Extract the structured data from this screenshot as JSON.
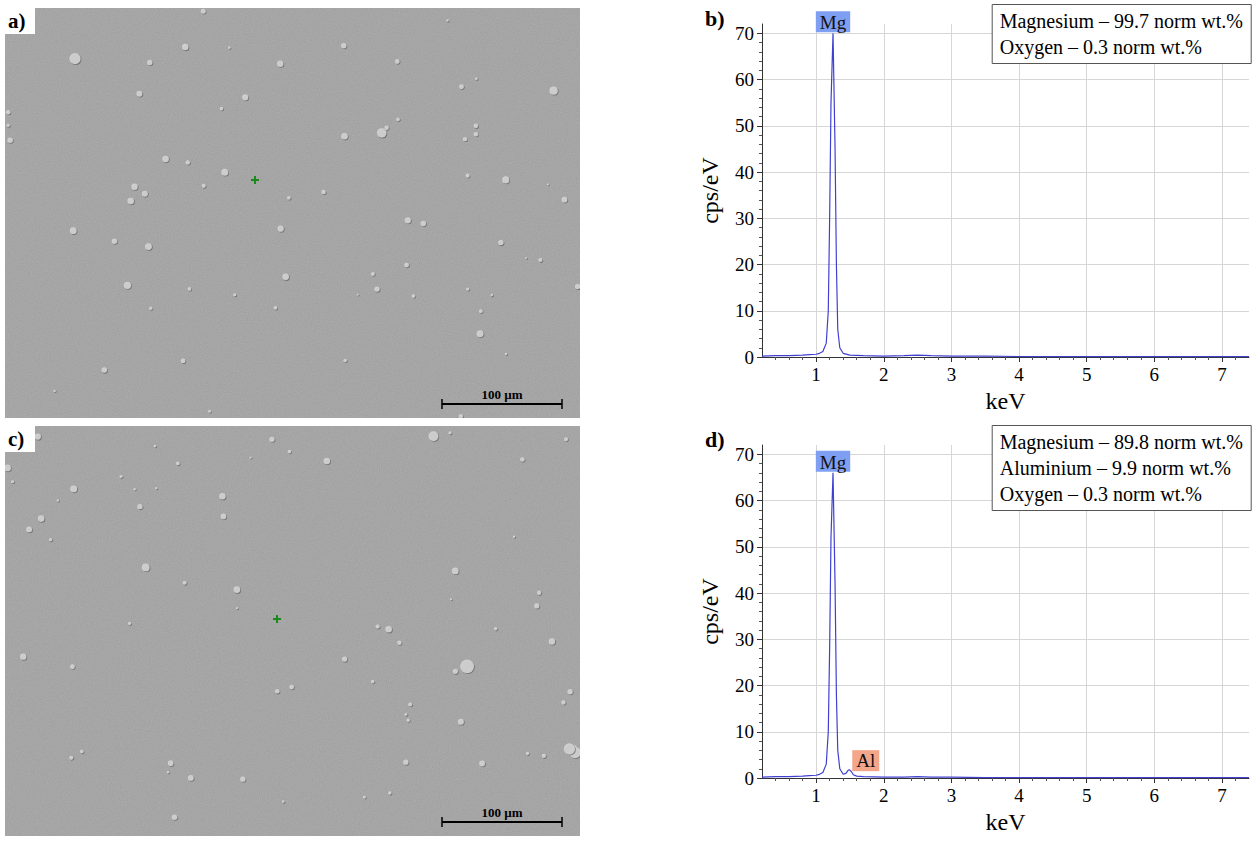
{
  "images": [
    {
      "panel": "a)",
      "scale_bar": "100 µm"
    },
    {
      "panel": "c)",
      "scale_bar": "100 µm"
    }
  ],
  "chart_data": [
    {
      "panel": "b)",
      "type": "line",
      "x_label": "keV",
      "y_label": "cps/eV",
      "xlim": [
        0.2,
        7.4
      ],
      "xticks": [
        1,
        2,
        3,
        4,
        5,
        6,
        7
      ],
      "ylim": [
        0,
        72
      ],
      "yticks": [
        0,
        10,
        20,
        30,
        40,
        50,
        60,
        70
      ],
      "grid": true,
      "color": "#4040d0",
      "x": [
        0.2,
        0.4,
        0.6,
        0.8,
        0.9,
        1.0,
        1.05,
        1.1,
        1.15,
        1.18,
        1.2,
        1.22,
        1.25,
        1.28,
        1.3,
        1.32,
        1.35,
        1.4,
        1.5,
        1.7,
        2.0,
        2.3,
        2.5,
        2.7,
        3.0,
        3.5,
        4.0,
        5.0,
        6.0,
        7.0,
        7.4
      ],
      "values": [
        0.2,
        0.3,
        0.3,
        0.4,
        0.5,
        0.6,
        0.8,
        1.2,
        3,
        10,
        30,
        55,
        70,
        45,
        20,
        6,
        2,
        0.8,
        0.4,
        0.3,
        0.2,
        0.3,
        0.4,
        0.3,
        0.2,
        0.2,
        0.1,
        0.1,
        0.1,
        0.1,
        0.1
      ],
      "peak_labels": [
        {
          "text": "Mg",
          "x": 1.25,
          "y": 70,
          "color": "#7f9ff2"
        }
      ],
      "composition": [
        "Magnesium – 99.7 norm wt.%",
        "Oxygen – 0.3 norm wt.%"
      ]
    },
    {
      "panel": "d)",
      "type": "line",
      "x_label": "keV",
      "y_label": "cps/eV",
      "xlim": [
        0.2,
        7.4
      ],
      "xticks": [
        1,
        2,
        3,
        4,
        5,
        6,
        7
      ],
      "ylim": [
        0,
        72
      ],
      "yticks": [
        0,
        10,
        20,
        30,
        40,
        50,
        60,
        70
      ],
      "grid": true,
      "color": "#4040d0",
      "x": [
        0.2,
        0.4,
        0.6,
        0.8,
        0.9,
        1.0,
        1.05,
        1.1,
        1.15,
        1.18,
        1.2,
        1.22,
        1.25,
        1.28,
        1.3,
        1.32,
        1.35,
        1.4,
        1.44,
        1.47,
        1.49,
        1.52,
        1.55,
        1.6,
        1.7,
        2.0,
        2.3,
        2.5,
        2.7,
        3.0,
        3.5,
        4.0,
        5.0,
        6.0,
        7.0,
        7.4
      ],
      "values": [
        0.2,
        0.3,
        0.3,
        0.4,
        0.5,
        0.6,
        0.8,
        1.2,
        3,
        10,
        28,
        52,
        66,
        42,
        18,
        6,
        2,
        0.8,
        1.0,
        1.6,
        1.8,
        1.4,
        0.7,
        0.4,
        0.3,
        0.2,
        0.2,
        0.3,
        0.2,
        0.2,
        0.1,
        0.1,
        0.1,
        0.1,
        0.1,
        0.1
      ],
      "peak_labels": [
        {
          "text": "Mg",
          "x": 1.25,
          "y": 66,
          "color": "#7f9ff2"
        },
        {
          "text": "Al",
          "x": 1.49,
          "y": 1.8,
          "color": "#f4a68b"
        }
      ],
      "composition": [
        "Magnesium – 89.8 norm wt.%",
        "Aluminium – 9.9 norm wt.%",
        "Oxygen – 0.3 norm wt.%"
      ]
    }
  ]
}
